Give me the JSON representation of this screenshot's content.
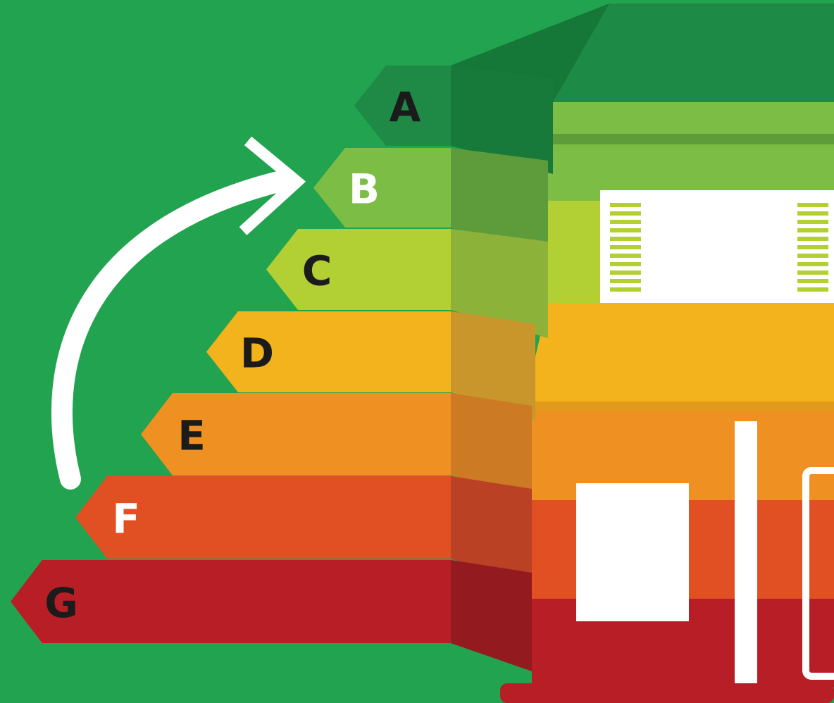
{
  "ratings": [
    "A",
    "B",
    "C",
    "D",
    "E",
    "F",
    "G"
  ]
}
